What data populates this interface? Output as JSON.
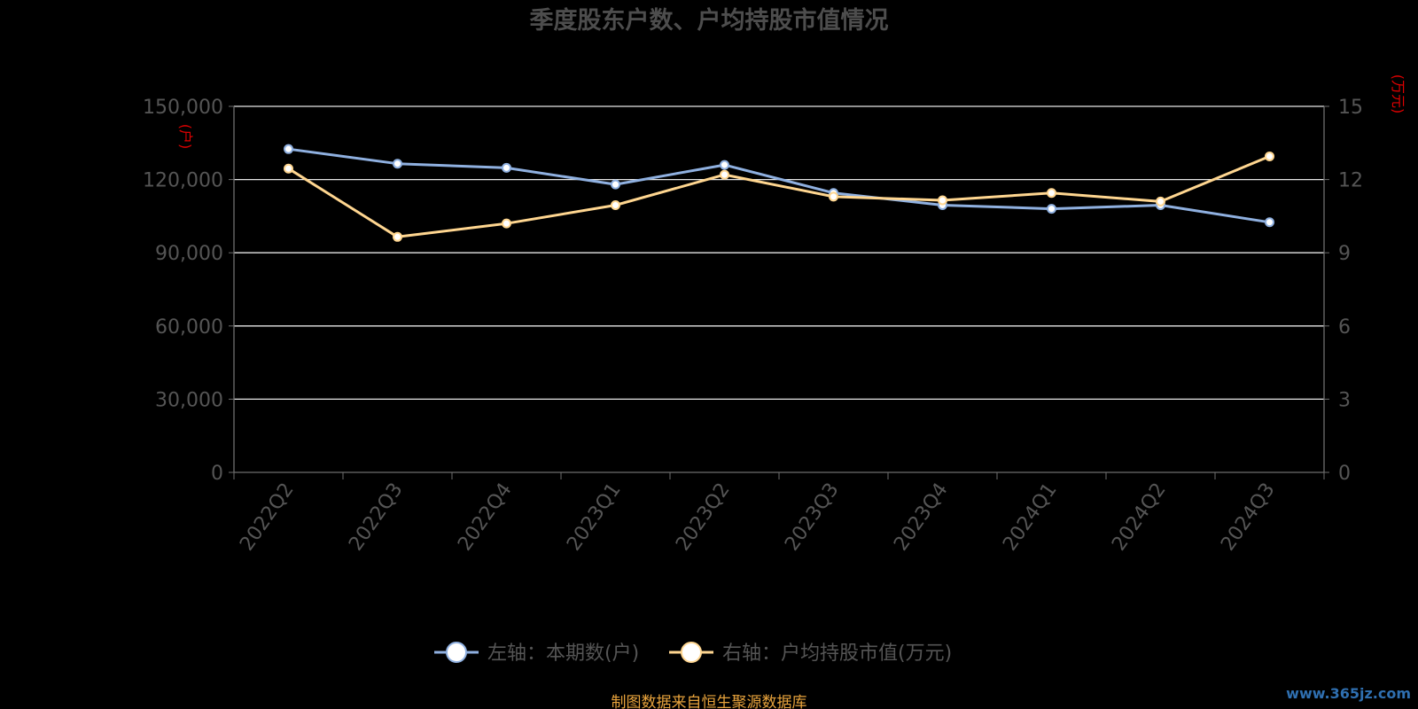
{
  "chart_data": {
    "type": "line",
    "title": "季度股东户数、户均持股市值情况",
    "categories": [
      "2022Q2",
      "2022Q3",
      "2022Q4",
      "2023Q1",
      "2023Q2",
      "2023Q3",
      "2023Q4",
      "2024Q1",
      "2024Q2",
      "2024Q3"
    ],
    "series": [
      {
        "name": "左轴：本期数(户)",
        "axis": "left",
        "color": "#8fb0e0",
        "values": [
          132500,
          126500,
          124800,
          118000,
          126000,
          114500,
          109500,
          108000,
          109500,
          102500
        ]
      },
      {
        "name": "右轴：户均持股市值(万元)",
        "axis": "right",
        "color": "#ffd690",
        "values": [
          12.45,
          9.65,
          10.2,
          10.95,
          12.2,
          11.3,
          11.15,
          11.45,
          11.1,
          12.95
        ]
      }
    ],
    "y_left": {
      "label": "(户)",
      "ylim": [
        0,
        150000
      ],
      "ticks": [
        "0",
        "30,000",
        "60,000",
        "90,000",
        "120,000",
        "150,000"
      ]
    },
    "y_right": {
      "label": "(万元)",
      "ylim": [
        0,
        15
      ],
      "ticks": [
        "0",
        "3",
        "6",
        "9",
        "12",
        "15"
      ]
    },
    "grid": true,
    "legend_position": "bottom-center"
  },
  "footer": {
    "source_note": "制图数据来自恒生聚源数据库",
    "watermark": "www.365jz.com"
  }
}
